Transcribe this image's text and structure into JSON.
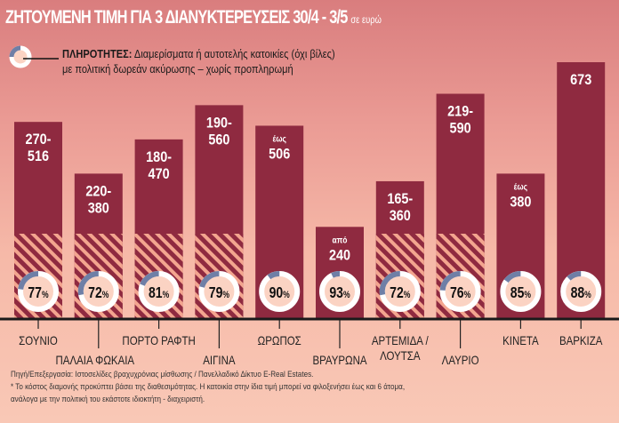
{
  "title": "ΖΗΤΟΥΜΕΝΗ ΤΙΜΗ ΓΙΑ 3 ΔΙΑΝΥΚΤΕΡΕΥΣΕΙΣ 30/4 - 3/5",
  "title_unit": "σε ευρώ",
  "legend": {
    "label": "ΠΛΗΡΟΤΗΤΕΣ:",
    "line1": "Διαμερίσματα ή αυτοτελής κατοικίες (όχι βίλες)",
    "line2": "με πολιτική δωρεάν ακύρωσης – χωρίς προπληρωμή"
  },
  "notes": {
    "source": "Πηγή/Επεξεργασία: Ιστοσελίδες βραχυχρόνιας μίσθωσης / Πανελλαδικό Δίκτυο E-Real Estates.",
    "footnote1": "* Το κόστος διαμονής προκύπτει βάσει της διαθεσιμότητας. Η κατοικία στην ίδια τιμή μπορεί να φιλοξενήσει έως και 6 άτομα,",
    "footnote2": "ανάλογα με την πολιτική του εκάστοτε ιδιοκτήτη - διαχειριστή."
  },
  "colors": {
    "bar": "#8f2a40",
    "hatch": "#f3a58f",
    "ring": "#ffffff",
    "ring_empty": "#6f7fa6",
    "circle_fill": "#fbd3c3"
  },
  "chart_data": {
    "type": "bar",
    "title": "ΖΗΤΟΥΜΕΝΗ ΤΙΜΗ ΓΙΑ 3 ΔΙΑΝΥΚΤΕΡΕΥΣΕΙΣ 30/4 - 3/5",
    "ylabel": "σε ευρώ",
    "grid": false,
    "prefix_up_to": "έως",
    "prefix_from": "από",
    "categories": [
      "ΣΟΥΝΙΟ",
      "ΠΑΛΑΙΑ ΦΩΚΑΙΑ",
      "ΠΟΡΤΟ ΡΑΦΤΗ",
      "ΑΙΓΙΝΑ",
      "ΩΡΩΠΟΣ",
      "ΒΡΑΥΡΩΝΑ",
      "ΑΡΤΕΜΙΔΑ / ΛΟΥΤΣΑ",
      "ΛΑΥΡΙΟ",
      "ΚΙΝΕΤΑ",
      "ΒΑΡΚΙΖΑ"
    ],
    "series": [
      {
        "name": "price_min",
        "values": [
          270,
          220,
          180,
          190,
          null,
          240,
          165,
          219,
          null,
          null
        ]
      },
      {
        "name": "price_max",
        "values": [
          516,
          380,
          470,
          560,
          506,
          null,
          360,
          590,
          380,
          673
        ]
      },
      {
        "name": "ΠΛΗΡΟΤΗΤΕΣ",
        "values": [
          77,
          72,
          81,
          79,
          90,
          93,
          72,
          76,
          85,
          88
        ]
      }
    ],
    "percent_sign": "%"
  }
}
